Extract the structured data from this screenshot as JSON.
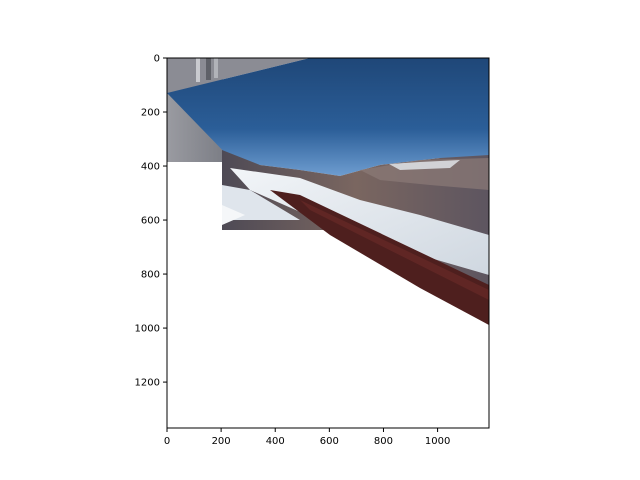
{
  "chart_data": {
    "type": "image",
    "title": "",
    "xlabel": "",
    "ylabel": "",
    "xlim": [
      0,
      1190
    ],
    "ylim": [
      1370,
      0
    ],
    "x_ticks": [
      0,
      200,
      400,
      600,
      800,
      1000
    ],
    "x_tick_labels": [
      "0",
      "200",
      "400",
      "600",
      "800",
      "1000"
    ],
    "y_ticks": [
      0,
      200,
      400,
      600,
      800,
      1000,
      1200
    ],
    "y_tick_labels": [
      "0",
      "200",
      "400",
      "600",
      "800",
      "1000",
      "1200"
    ],
    "grid": false,
    "image_content": "warped panorama of snowy mountain slopes under blue sky",
    "colors": {
      "sky_dark": "#1e4a7e",
      "sky_light": "#5b8fc8",
      "snow": "#e8edf2",
      "rock": "#6b5a58",
      "gray_panel": "#8f9096",
      "red_band": "#5a2220"
    }
  }
}
